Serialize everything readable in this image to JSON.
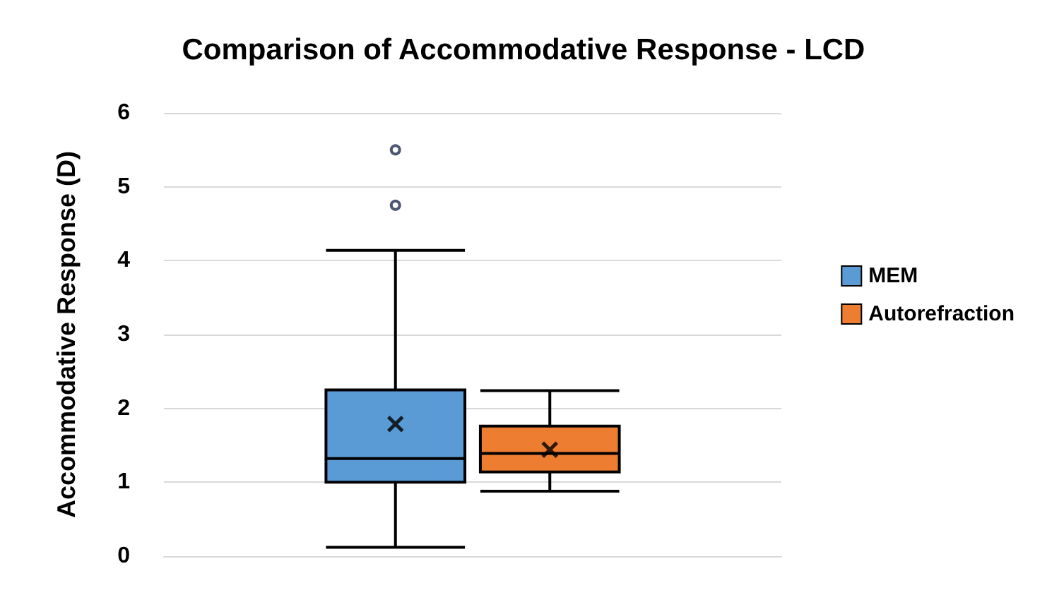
{
  "chart_data": {
    "type": "box",
    "title": "Comparison of Accommodative Response - LCD",
    "ylabel": "Accommodative Response (D)",
    "categories": [
      null
    ],
    "series": [
      {
        "name": "MEM",
        "color": "#5b9bd5",
        "boxes": [
          {
            "low": 0.12,
            "q1": 1.0,
            "median": 1.32,
            "q3": 2.25,
            "high": 4.14,
            "mean": 1.79,
            "outliers": [
              4.75,
              5.5
            ]
          }
        ]
      },
      {
        "name": "Autorefraction",
        "color": "#ed7d31",
        "boxes": [
          {
            "low": 0.88,
            "q1": 1.14,
            "median": 1.39,
            "q3": 1.76,
            "high": 2.24,
            "mean": 1.44
          }
        ]
      }
    ],
    "ylim": [
      0,
      6
    ],
    "yticks": [
      0,
      1,
      2,
      3,
      4,
      5,
      6
    ],
    "grid": "y",
    "legend": "right"
  }
}
